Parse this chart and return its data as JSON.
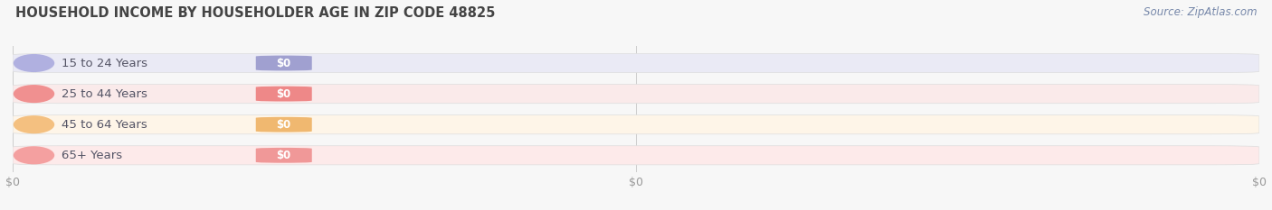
{
  "title": "HOUSEHOLD INCOME BY HOUSEHOLDER AGE IN ZIP CODE 48825",
  "source": "Source: ZipAtlas.com",
  "categories": [
    "15 to 24 Years",
    "25 to 44 Years",
    "45 to 64 Years",
    "65+ Years"
  ],
  "values": [
    0,
    0,
    0,
    0
  ],
  "bar_colors": [
    "#a0a0d0",
    "#ee8888",
    "#f0b870",
    "#f09898"
  ],
  "bar_bg_colors": [
    "#eaeaf5",
    "#faeaea",
    "#fef5e8",
    "#fdeaea"
  ],
  "circle_colors": [
    "#b0b0e0",
    "#f09090",
    "#f4c080",
    "#f4a0a0"
  ],
  "text_color": "#555566",
  "title_color": "#444444",
  "background_color": "#f7f7f7",
  "tick_label_color": "#999999",
  "source_color": "#7788aa",
  "xlim": [
    0,
    1
  ],
  "bar_height": 0.62,
  "n_xticks": 3,
  "xtick_positions": [
    0.0,
    0.5,
    1.0
  ],
  "xtick_labels": [
    "$0",
    "$0",
    "$0"
  ]
}
